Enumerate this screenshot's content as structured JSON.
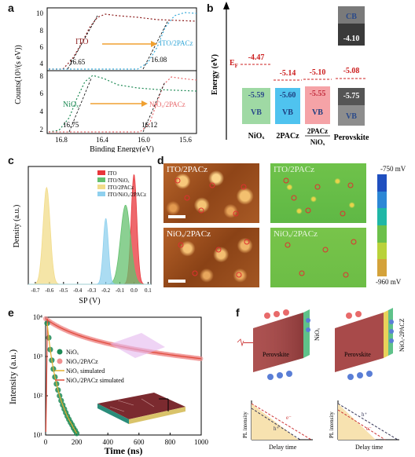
{
  "figure": {
    "panel_labels": [
      "a",
      "b",
      "c",
      "d",
      "e",
      "f"
    ]
  },
  "panel_a": {
    "ylabel": "Counts(10³/(s eV))",
    "xlabel": "Binding Energy(eV)",
    "xticks": [
      "16.8",
      "16.4",
      "16.0",
      "15.6"
    ],
    "yticks_top": [
      "10",
      "8",
      "6",
      "4"
    ],
    "yticks_bottom": [
      "8",
      "6",
      "4",
      "2"
    ],
    "top": {
      "label_left": "ITO",
      "label_right": "ITO/2PACz",
      "val_left": "16.65",
      "val_right": "16.08"
    },
    "bottom": {
      "label_left": "NiOₓ",
      "label_right": "NiOₓ/2PACz",
      "val_left": "16.75",
      "val_right": "16.12"
    },
    "colors": {
      "ito": "#8b1a1a",
      "ito_2pacz": "#35a8d8",
      "niox": "#1e8a55",
      "niox_2pacz": "#e8676a",
      "arrow": "#f0a030"
    }
  },
  "panel_b": {
    "ylabel": "Energy (eV)",
    "ef_label": "E",
    "ef_sub": "F",
    "levels": [
      {
        "name": "NiOₓ",
        "ef": "-4.47",
        "vb": "-5.59",
        "vb_label": "VB",
        "color": "#9fd9a4"
      },
      {
        "name": "2PACz",
        "ef": "-5.14",
        "vb": "-5.60",
        "vb_label": "VB",
        "color": "#4fc3ef"
      },
      {
        "name": "2PACz/NiOₓ",
        "ef": "-5.10",
        "vb": "-5.55",
        "vb_label": "VB",
        "color": "#f5a3a7"
      },
      {
        "name": "Perovskite",
        "ef": "-5.08",
        "vb": "-5.75",
        "vb_label": "VB",
        "cb": "-4.10",
        "cb_label": "CB",
        "color": "#555555"
      }
    ],
    "ef_color": "#cc1f1f"
  },
  "panel_c": {
    "xlabel": "SP (V)",
    "ylabel": "Density (a.u.)",
    "xticks": [
      "-0.7",
      "-0.6",
      "-0.5",
      "-0.4",
      "-0.3",
      "-0.2",
      "-0.1",
      "0.0",
      "0.1"
    ],
    "legend": [
      {
        "name": "ITO",
        "color": "#e8363b"
      },
      {
        "name": "ITO/NiOₓ",
        "color": "#64c06e"
      },
      {
        "name": "ITO/2PACz",
        "color": "#f2dc8a"
      },
      {
        "name": "ITO/NiOₓ/2PACz",
        "color": "#8fd0ee"
      }
    ]
  },
  "panel_d": {
    "labels": [
      "ITO/2PACz",
      "ITO/2PACz",
      "NiOₓ/2PACz",
      "NiOₓ/2PACz"
    ],
    "scale_top": "-750 mV",
    "scale_bottom": "-960 mV",
    "scale_colors": [
      "#1f4fbf",
      "#2c87d6",
      "#1fb7a6",
      "#6cc04a",
      "#b9d23a",
      "#d4a23a"
    ]
  },
  "panel_e": {
    "xlabel": "Time (ns)",
    "ylabel": "Intensity (a.u.)",
    "xticks": [
      "0",
      "200",
      "400",
      "600",
      "800",
      "1000"
    ],
    "yticks": [
      "10¹",
      "10²",
      "10³",
      "10⁴"
    ],
    "legend": [
      {
        "name": "NiOₓ",
        "color": "#1e8a55"
      },
      {
        "name": "NiOₓ/2PACz",
        "color": "#f09090"
      },
      {
        "name": "NiOₓ simulated",
        "color": "#e3b030"
      },
      {
        "name": "NiOₓ/2PACz simulated",
        "color": "#e04a3a"
      }
    ]
  },
  "panel_f": {
    "left_label": "NiOₓ",
    "right_label": "NiOₓ-2PACZ",
    "perovskite": "Perovskite",
    "pl_ylabel": "PL intensity",
    "pl_xlabel": "Delay time",
    "electron": "e⁻",
    "hole": "h⁺"
  },
  "chart_data": [
    {
      "type": "bar",
      "title": "",
      "categories": [
        "NiOₓ",
        "2PACz",
        "2PACz/NiOₓ",
        "Perovskite"
      ],
      "series": [
        {
          "name": "E_F",
          "values": [
            -4.47,
            -5.14,
            -5.1,
            -5.08
          ]
        },
        {
          "name": "VB",
          "values": [
            -5.59,
            -5.6,
            -5.55,
            -5.75
          ]
        }
      ],
      "extra": {
        "perovskite_cb": -4.1
      },
      "ylabel": "Energy (eV)"
    },
    {
      "type": "area",
      "xlabel": "SP (V)",
      "ylabel": "Density (a.u.)",
      "xlim": [
        -0.75,
        0.12
      ],
      "series": [
        {
          "name": "ITO",
          "peak_x": 0.0,
          "width": 0.02,
          "height": 1.0
        },
        {
          "name": "ITO/NiOₓ",
          "peak_x": -0.06,
          "width": 0.035,
          "height": 0.72
        },
        {
          "name": "ITO/2PACz",
          "peak_x": -0.62,
          "width": 0.025,
          "height": 0.88
        },
        {
          "name": "ITO/NiOₓ/2PACz",
          "peak_x": -0.2,
          "width": 0.018,
          "height": 0.6
        }
      ]
    },
    {
      "type": "scatter",
      "xlabel": "Time (ns)",
      "ylabel": "Intensity (a.u.)",
      "xlim": [
        0,
        1000
      ],
      "ylim_log10": [
        1,
        4
      ],
      "series": [
        {
          "name": "NiOₓ",
          "x": [
            10,
            20,
            30,
            40,
            50,
            60,
            70,
            80,
            90,
            100,
            110,
            120,
            130,
            140,
            150,
            160,
            170,
            180,
            190,
            200
          ],
          "y": [
            7000,
            3000,
            1500,
            800,
            480,
            300,
            200,
            140,
            100,
            75,
            58,
            46,
            37,
            30,
            25,
            21,
            18,
            15,
            13,
            11
          ]
        },
        {
          "name": "NiOₓ/2PACz",
          "x": [
            0,
            100,
            200,
            300,
            400,
            500,
            600,
            700,
            800,
            900,
            1000
          ],
          "y": [
            9000,
            6000,
            4600,
            3700,
            3000,
            2500,
            2100,
            1800,
            1550,
            1350,
            1200
          ]
        }
      ]
    }
  ]
}
